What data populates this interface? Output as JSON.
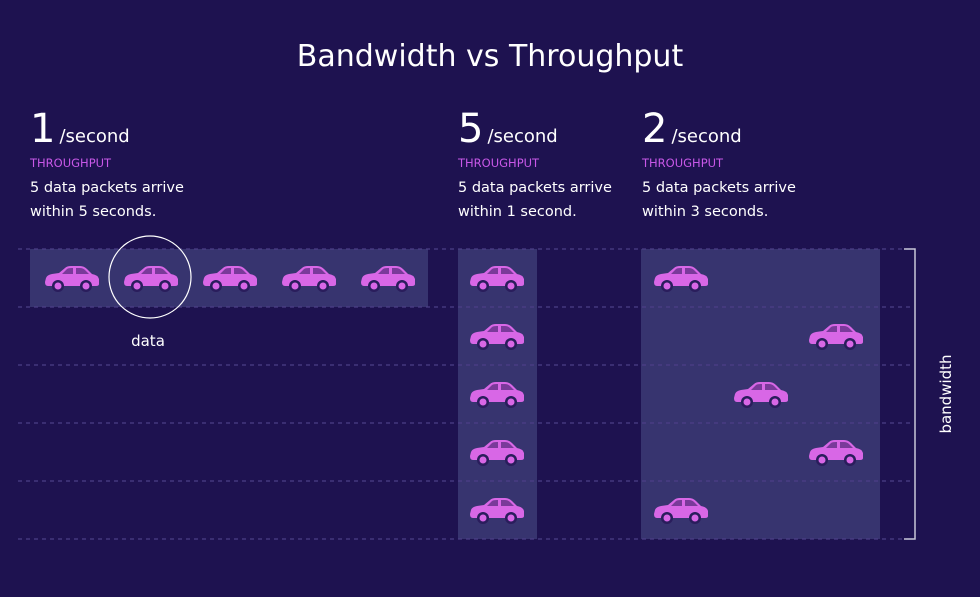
{
  "title": "Bandwidth vs Throughput",
  "panels": [
    {
      "rate": 1,
      "unit": "/second",
      "label": "THROUGHPUT",
      "description": [
        "5 data packets arrive",
        "within 5 seconds."
      ]
    },
    {
      "rate": 5,
      "unit": "/second",
      "label": "THROUGHPUT",
      "description": [
        "5 data packets arrive",
        "within 1 second."
      ]
    },
    {
      "rate": 2,
      "unit": "/second",
      "label": "THROUGHPUT",
      "description": [
        "5 data packets arrive",
        "within 3 seconds."
      ]
    }
  ],
  "data_label": "data",
  "bandwidth_label": "bandwidth"
}
